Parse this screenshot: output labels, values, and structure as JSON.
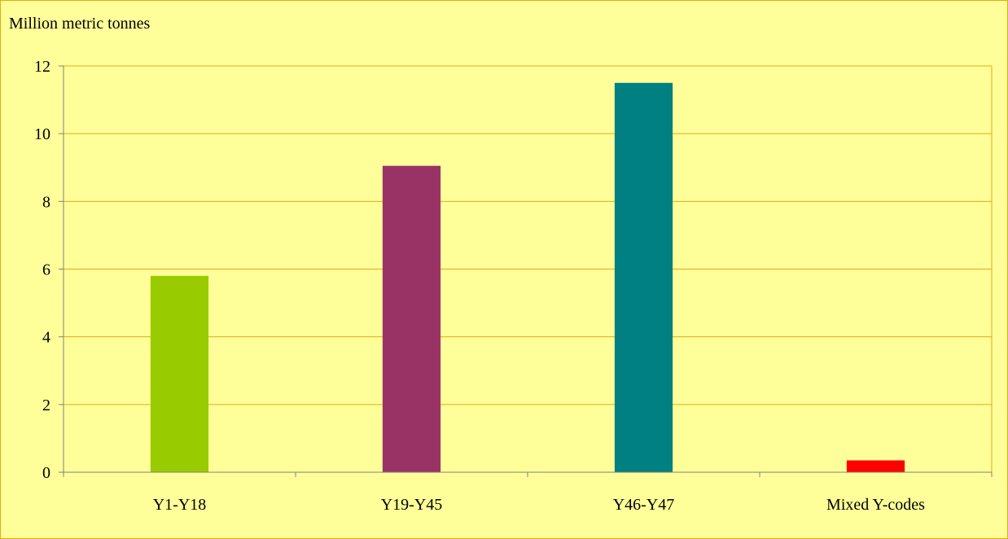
{
  "chart_data": {
    "type": "bar",
    "title": "",
    "unit_label": "Million metric tonnes",
    "xlabel": "",
    "ylabel": "",
    "categories": [
      "Y1-Y18",
      "Y19-Y45",
      "Y46-Y47",
      "Mixed Y-codes"
    ],
    "values": [
      5.8,
      9.05,
      11.5,
      0.35
    ],
    "bar_colors": [
      "#99cc00",
      "#993366",
      "#008080",
      "#ff0000"
    ],
    "ylim": [
      0,
      12
    ],
    "yticks": [
      0,
      2,
      4,
      6,
      8,
      10,
      12
    ],
    "grid": true,
    "legend": "none",
    "colors": {
      "background": "#ffff99",
      "gridline": "#e6a817",
      "axis": "#808080"
    }
  }
}
